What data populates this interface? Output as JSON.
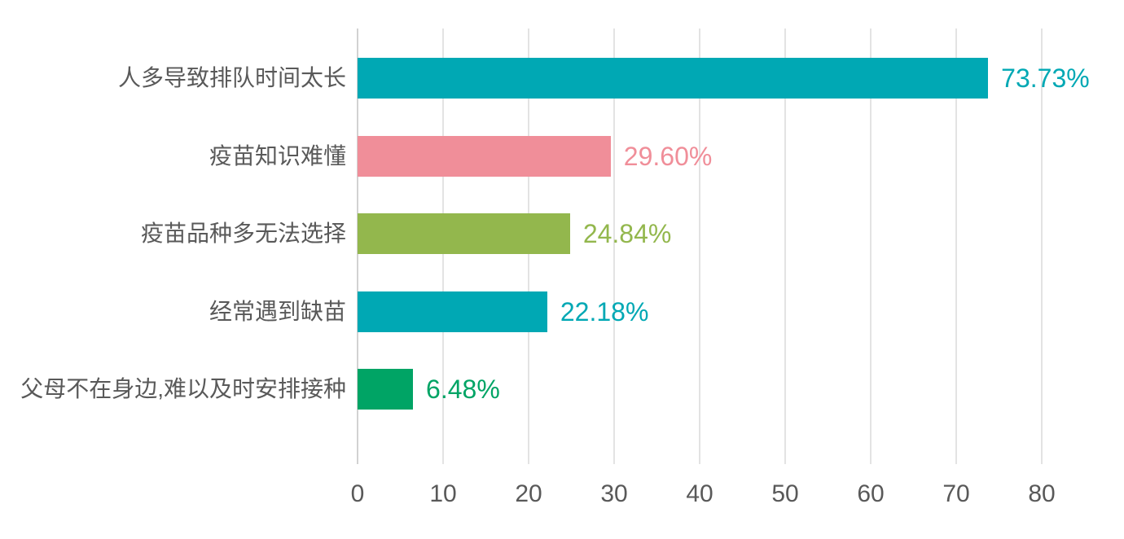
{
  "chart_data": {
    "type": "bar",
    "orientation": "horizontal",
    "title": "",
    "xlabel": "",
    "ylabel": "",
    "categories": [
      "人多导致排队时间太长",
      "疫苗知识难懂",
      "疫苗品种多无法选择",
      "经常遇到缺苗",
      "父母不在身边,难以及时安排接种"
    ],
    "values": [
      73.73,
      29.6,
      24.84,
      22.18,
      6.48
    ],
    "value_labels": [
      "73.73%",
      "29.60%",
      "24.84%",
      "22.18%",
      "6.48%"
    ],
    "bar_colors": [
      "#00a8b4",
      "#f08e99",
      "#93b74d",
      "#00a8b4",
      "#00a465"
    ],
    "x_ticks": [
      "0",
      "10",
      "20",
      "30",
      "40",
      "50",
      "60",
      "70",
      "80"
    ],
    "x_tick_values": [
      0,
      10,
      20,
      30,
      40,
      50,
      60,
      70,
      80
    ],
    "xlim": [
      0,
      80
    ],
    "grid": "vertical",
    "legend": "none",
    "gridline_color": "#e3e3e3",
    "axis_text_color": "#595959",
    "background_color": "#ffffff"
  }
}
